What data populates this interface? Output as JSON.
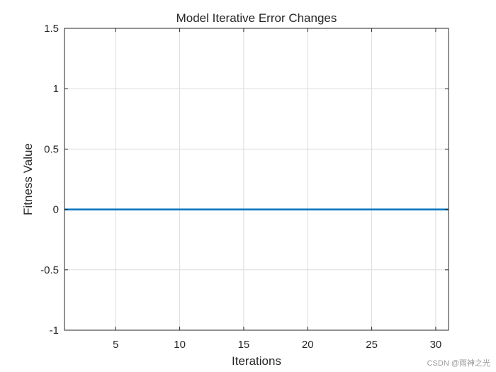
{
  "chart_data": {
    "type": "line",
    "title": "Model Iterative Error Changes",
    "xlabel": "Iterations",
    "ylabel": "Fitness Value",
    "xlim": [
      1,
      31
    ],
    "ylim": [
      -1,
      1.5
    ],
    "xticks": [
      5,
      10,
      15,
      20,
      25,
      30
    ],
    "xtick_labels": [
      "5",
      "10",
      "15",
      "20",
      "25",
      "30"
    ],
    "yticks": [
      -1,
      -0.5,
      0,
      0.5,
      1,
      1.5
    ],
    "ytick_labels": [
      "-1",
      "-0.5",
      "0",
      "0.5",
      "1",
      "1.5"
    ],
    "grid": true,
    "series": [
      {
        "color": "#0072BD",
        "x": [
          1,
          2,
          3,
          4,
          5,
          6,
          7,
          8,
          9,
          10,
          11,
          12,
          13,
          14,
          15,
          16,
          17,
          18,
          19,
          20,
          21,
          22,
          23,
          24,
          25,
          26,
          27,
          28,
          29,
          30,
          31
        ],
        "y": [
          0,
          0,
          0,
          0,
          0,
          0,
          0,
          0,
          0,
          0,
          0,
          0,
          0,
          0,
          0,
          0,
          0,
          0,
          0,
          0,
          0,
          0,
          0,
          0,
          0,
          0,
          0,
          0,
          0,
          0,
          0
        ]
      }
    ]
  },
  "watermark": "CSDN @雨神之光"
}
